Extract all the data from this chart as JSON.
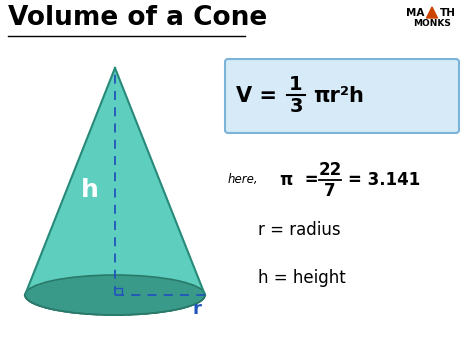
{
  "title": "Volume of a Cone",
  "bg_color": "#ffffff",
  "cone_fill_color": "#5ecfbf",
  "cone_edge_color": "#2a8a7a",
  "base_fill_color": "#3a9a8a",
  "base_edge_color": "#2a7a6a",
  "dashed_line_color": "#2255bb",
  "formula_box_color": "#d6eaf8",
  "formula_box_edge": "#7ab5d8",
  "title_color": "#000000",
  "logo_triangle_color": "#cc4400",
  "r_label": "r = radius",
  "h_label": "h = height",
  "h_cone_label": "h",
  "r_cone_label": "r"
}
